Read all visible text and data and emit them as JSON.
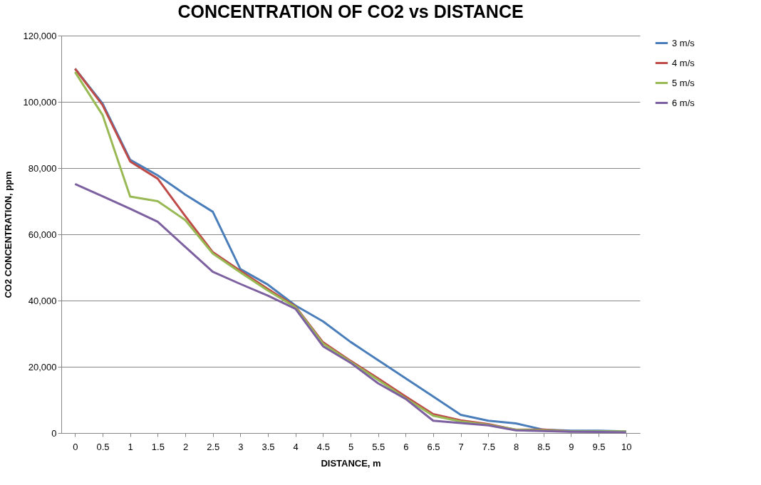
{
  "chart_data": {
    "type": "line",
    "title": "CONCENTRATION OF CO2 vs DISTANCE",
    "xlabel": "DISTANCE, m",
    "ylabel": "CO2 CONCENTRATION, ppm",
    "categories": [
      "0",
      "0.5",
      "1",
      "1.5",
      "2",
      "2.5",
      "3",
      "3.5",
      "4",
      "4.5",
      "5",
      "5.5",
      "6",
      "6.5",
      "7",
      "7.5",
      "8",
      "8.5",
      "9",
      "9.5",
      "10"
    ],
    "series": [
      {
        "name": "3 m/s",
        "color": "#4a7ebb",
        "values": [
          110000,
          99500,
          82500,
          77800,
          72000,
          66800,
          49500,
          44800,
          38500,
          33700,
          27500,
          22000,
          16500,
          11000,
          5500,
          3700,
          2900,
          1000,
          700,
          700,
          500
        ]
      },
      {
        "name": "4 m/s",
        "color": "#be4b48",
        "values": [
          110000,
          99000,
          82000,
          76800,
          65500,
          54600,
          49000,
          43500,
          38200,
          27400,
          21800,
          16500,
          11000,
          5700,
          3800,
          2700,
          1000,
          1000,
          500,
          null,
          null
        ]
      },
      {
        "name": "5 m/s",
        "color": "#98b954",
        "values": [
          109000,
          96000,
          71400,
          70000,
          64300,
          54200,
          48500,
          43000,
          38000,
          27000,
          21500,
          16000,
          10500,
          5200,
          3500,
          2500,
          1000,
          800,
          500,
          500,
          500
        ]
      },
      {
        "name": "6 m/s",
        "color": "#7d60a0",
        "values": [
          75200,
          71500,
          67700,
          63800,
          56200,
          48700,
          45000,
          41500,
          37500,
          26200,
          21200,
          15000,
          10300,
          3700,
          3000,
          2300,
          800,
          600,
          400,
          300,
          200
        ]
      }
    ],
    "ylim": [
      0,
      120000
    ],
    "yticks": [
      0,
      {
        "value": 20000,
        "label": "20,000"
      },
      {
        "value": 40000,
        "label": "40,000"
      },
      {
        "value": 60000,
        "label": "60,000"
      },
      {
        "value": 80000,
        "label": "80,000"
      },
      {
        "value": 100000,
        "label": "100,000"
      },
      {
        "value": 120000,
        "label": "120,000"
      }
    ],
    "grid": "y",
    "legend": "right",
    "marker": "none",
    "line_style": "solid"
  }
}
